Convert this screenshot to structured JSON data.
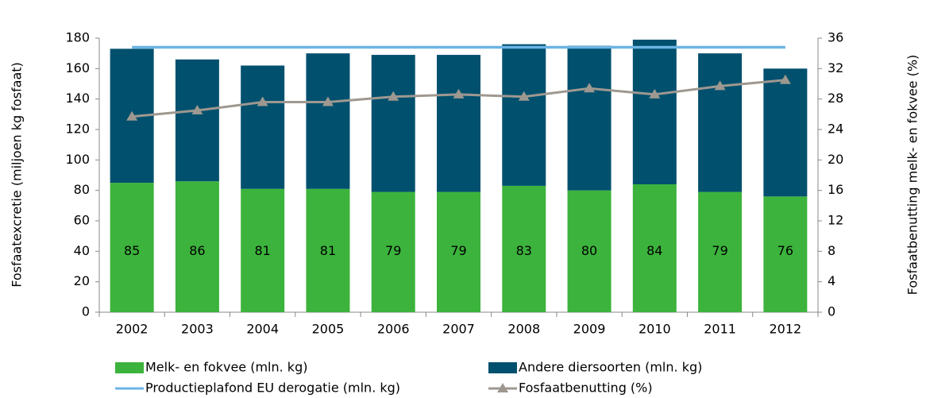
{
  "chart_data": {
    "type": "bar",
    "categories": [
      "2002",
      "2003",
      "2004",
      "2005",
      "2006",
      "2007",
      "2008",
      "2009",
      "2010",
      "2011",
      "2012"
    ],
    "y_label": "Fosfaatexcretie (miljoen kg fosfaat)",
    "y2_label": "Fosfaatbenutting melk- en fokvee  (%)",
    "series": [
      {
        "name": "Melk- en fokvee (mln. kg)",
        "color": "#3cb33c",
        "kind": "stacked-bar",
        "values": [
          85,
          86,
          81,
          81,
          79,
          79,
          83,
          80,
          84,
          79,
          76
        ]
      },
      {
        "name": "Andere diersoorten (mln. kg)",
        "color": "#00506e",
        "kind": "stacked-bar",
        "values": [
          88,
          80,
          81,
          89,
          90,
          90,
          93,
          95,
          95,
          91,
          84
        ]
      },
      {
        "name": "Productieplafond EU derogatie (mln. kg)",
        "color": "#6cb4e4",
        "kind": "line",
        "values": [
          174,
          174,
          174,
          174,
          174,
          174,
          174,
          174,
          174,
          174,
          174
        ]
      },
      {
        "name": "Fosfaatbenutting (%)",
        "color": "#9e9890",
        "kind": "line",
        "axis": "y2",
        "marker": "triangle",
        "values": [
          25.7,
          26.5,
          27.6,
          27.6,
          28.3,
          28.6,
          28.3,
          29.4,
          28.6,
          29.7,
          30.5
        ]
      }
    ],
    "ylim": [
      0,
      180
    ],
    "yticks": [
      0,
      20,
      40,
      60,
      80,
      100,
      120,
      140,
      160,
      180
    ],
    "y2lim": [
      0,
      36
    ],
    "y2ticks": [
      0,
      4,
      8,
      12,
      16,
      20,
      24,
      28,
      32,
      36
    ]
  }
}
